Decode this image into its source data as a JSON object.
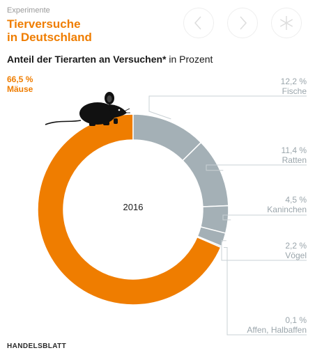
{
  "header": {
    "kicker": "Experimente",
    "title_line1": "Tierversuche",
    "title_line2": "in Deutschland",
    "subtitle_bold": "Anteil der Tierarten an Versuchen*",
    "subtitle_rest": " in Prozent"
  },
  "nav": {
    "prev_icon": "chevron-left-icon",
    "next_icon": "chevron-right-icon",
    "menu_icon": "asterisk-icon"
  },
  "footer": {
    "source": "HANDELSBLATT"
  },
  "colors": {
    "accent": "#ef7d00",
    "secondary": "#a4b0b6",
    "separator": "#ffffff"
  },
  "chart_data": {
    "type": "pie",
    "style": "donut",
    "center_label": "2016",
    "unit": "%",
    "slices": [
      {
        "name": "Mäuse",
        "value": 66.5,
        "value_label": "66,5 %",
        "color": "#ef7d00"
      },
      {
        "name": "Fische",
        "value": 12.2,
        "value_label": "12,2 %",
        "color": "#a4b0b6"
      },
      {
        "name": "Ratten",
        "value": 11.4,
        "value_label": "11,4 %",
        "color": "#a4b0b6"
      },
      {
        "name": "Kaninchen",
        "value": 4.5,
        "value_label": "4,5 %",
        "color": "#a4b0b6"
      },
      {
        "name": "Vögel",
        "value": 2.2,
        "value_label": "2,2 %",
        "color": "#a4b0b6"
      },
      {
        "name": "Affen, Halbaffen",
        "value": 0.1,
        "value_label": "0,1 %",
        "color": "#a4b0b6"
      }
    ],
    "decoration": "mouse-icon"
  }
}
